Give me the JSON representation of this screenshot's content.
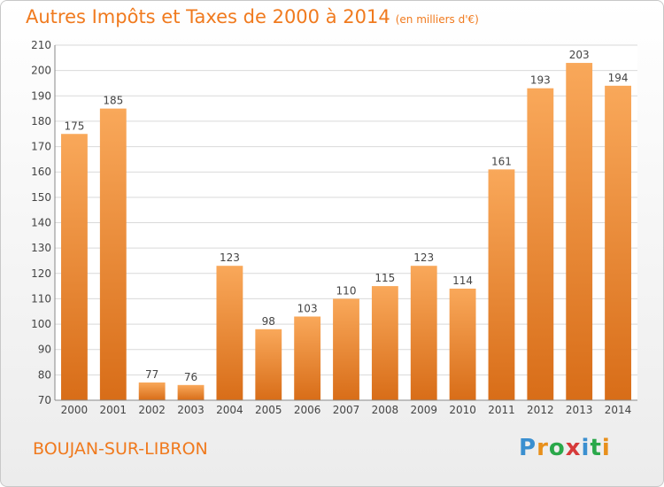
{
  "header": {
    "title": "Autres Impôts et Taxes de 2000 à 2014",
    "unit": "(en milliers d'€)"
  },
  "footer": {
    "commune": "BOUJAN-SUR-LIBRON",
    "logo_letters": [
      "P",
      "r",
      "o",
      "x",
      "i",
      "t",
      "i"
    ],
    "logo_colors": [
      "#3a8fd0",
      "#e8901c",
      "#2aa84a",
      "#d63a3a",
      "#3a8fd0",
      "#2aa84a",
      "#e8901c"
    ]
  },
  "chart_data": {
    "type": "bar",
    "title": "Autres Impôts et Taxes de 2000 à 2014",
    "categories": [
      "2000",
      "2001",
      "2002",
      "2003",
      "2004",
      "2005",
      "2006",
      "2007",
      "2008",
      "2009",
      "2010",
      "2011",
      "2012",
      "2013",
      "2014"
    ],
    "values": [
      175,
      185,
      77,
      76,
      123,
      98,
      103,
      110,
      115,
      123,
      114,
      161,
      193,
      203,
      194
    ],
    "ylim": [
      70,
      210
    ],
    "yticks": [
      70,
      80,
      90,
      100,
      110,
      120,
      130,
      140,
      150,
      160,
      170,
      180,
      190,
      200,
      210
    ],
    "grid": true,
    "bar_color_top": "#f9a85a",
    "bar_color_bottom": "#d86d18",
    "xlabel": "",
    "ylabel": ""
  }
}
